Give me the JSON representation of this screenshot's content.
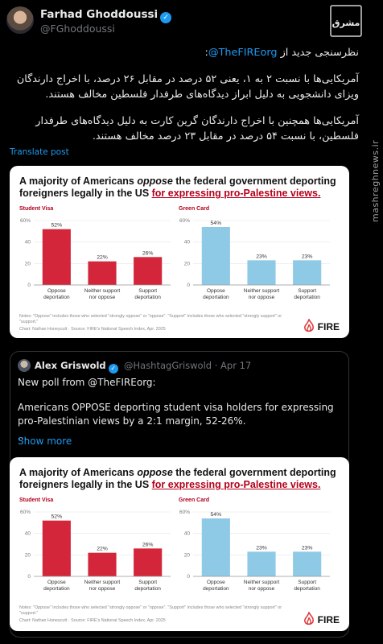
{
  "author": {
    "name": "Farhad Ghoddoussi",
    "handle": "@FGhoddoussi"
  },
  "tweet": {
    "line1_prefix": "نظرسنجی جدید از ",
    "line1_mention": "@TheFIREorg",
    "line1_suffix": ":",
    "para2": "آمریکایی‌ها با نسبت ۲ به ۱، یعنی ۵۲ درصد در مقابل ۲۶ درصد، با اخراج دارندگان ویزای دانشجویی به دلیل ابراز دیدگاه‌های طرفدار فلسطین مخالف هستند.",
    "para3": "آمریکایی‌ها همچنین با اخراج دارندگان گرین کارت به دلیل دیدگاه‌های طرفدار فلسطین، با نسبت ۵۴ درصد در مقابل ۲۳ درصد مخالف هستند.",
    "translate_label": "Translate post"
  },
  "watermark": {
    "side_text": "mashreghnews.ir",
    "logo_text": "مشرق"
  },
  "chart_card": {
    "title_plain": "A majority of Americans ",
    "title_oppose": "oppose",
    "title_mid": " the federal government deporting foreigners legally in the US ",
    "title_underlined": "for expressing pro-Palestine views.",
    "notes": "Notes: \"Oppose\" includes those who selected \"strongly oppose\" or \"oppose\". \"Support\" includes those who selected \"strongly support\" or \"support.\"",
    "notes2": "Notes: \"Oppose\" includes those who selected \"strongly oppose\" or \"oppose\". \"Support\" includes those who selected \"strongly support\" or \"support.\"",
    "credit": "Chart: Nathan Honeycutt · Source: FIRE's National Speech Index, Apr. 2025",
    "brand": "FIRE"
  },
  "chart_data": [
    {
      "type": "bar",
      "title": "Student Visa",
      "categories": [
        "Oppose deportation",
        "Neither support nor oppose",
        "Support deportation"
      ],
      "values": [
        52,
        22,
        26
      ],
      "labels": [
        "52%",
        "22%",
        "26%"
      ],
      "ylim": [
        0,
        60
      ],
      "yticks": [
        "0",
        "20",
        "40",
        "60%"
      ],
      "color": "#d3263a"
    },
    {
      "type": "bar",
      "title": "Green Card",
      "categories": [
        "Oppose deportation",
        "Neither support nor oppose",
        "Support deportation"
      ],
      "values": [
        54,
        23,
        23
      ],
      "labels": [
        "54%",
        "23%",
        "23%"
      ],
      "ylim": [
        0,
        60
      ],
      "yticks": [
        "0",
        "20",
        "40",
        "60%"
      ],
      "color": "#8ecae6"
    }
  ],
  "quote": {
    "name": "Alex Griswold",
    "meta": "@HashtagGriswold · Apr 17",
    "line1": "New poll from @TheFIREorg:",
    "line2": "Americans OPPOSE deporting student visa holders for expressing pro-Palestinian views by a 2:1 margin, 52-26%.",
    "line3": "...",
    "show_more": "Show more"
  }
}
